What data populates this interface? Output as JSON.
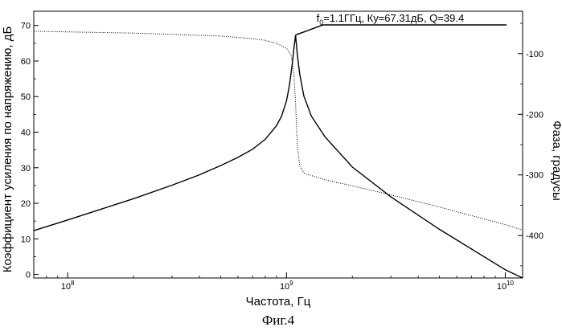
{
  "chart_data": {
    "type": "line",
    "title": "",
    "annotation": {
      "prefix": "f",
      "subscript": "0",
      "rest": "=1.1ГГц, Ку=67.31дБ, Q=39.4",
      "x": 1100000000.0,
      "y": 67.31
    },
    "xlabel": "Частота, Гц",
    "ylabel_left": "Коэффициент усиления по напряжению, дБ",
    "ylabel_right": "Фаза, градусы",
    "xscale": "log",
    "xlim": [
      70000000.0,
      12000000000.0
    ],
    "ylim_left": [
      -1,
      74
    ],
    "ylim_right": [
      -470,
      -30
    ],
    "x_ticks": [
      {
        "base": "10",
        "exp": "8",
        "value": 100000000.0
      },
      {
        "base": "10",
        "exp": "9",
        "value": 1000000000.0
      },
      {
        "base": "10",
        "exp": "10",
        "value": 10000000000.0
      }
    ],
    "y_ticks_left": [
      "0",
      "10",
      "20",
      "30",
      "40",
      "50",
      "60",
      "70"
    ],
    "y_ticks_right": [
      "-100",
      "-200",
      "-300",
      "-400"
    ],
    "series": [
      {
        "style": "solid",
        "axis": "left",
        "x": [
          70000000.0,
          100000000.0,
          200000000.0,
          300000000.0,
          400000000.0,
          500000000.0,
          600000000.0,
          700000000.0,
          800000000.0,
          900000000.0,
          950000000.0,
          1000000000.0,
          1030000000.0,
          1060000000.0,
          1080000000.0,
          1100000000.0,
          1120000000.0,
          1150000000.0,
          1200000000.0,
          1300000000.0,
          1500000000.0,
          2000000000.0,
          3000000000.0,
          5000000000.0,
          10000000000.0,
          12000000000.0
        ],
        "y": [
          12.3,
          15.3,
          21.3,
          25.1,
          28.0,
          30.6,
          32.9,
          35.2,
          38.0,
          41.8,
          44.5,
          48.8,
          52.9,
          58.6,
          63.2,
          67.31,
          62.0,
          56.3,
          50.2,
          44.5,
          38.7,
          30.2,
          21.8,
          12.7,
          1.3,
          -1.0
        ]
      },
      {
        "style": "dotted",
        "axis": "right",
        "x": [
          70000000.0,
          100000000.0,
          200000000.0,
          300000000.0,
          500000000.0,
          700000000.0,
          800000000.0,
          900000000.0,
          1000000000.0,
          1050000000.0,
          1080000000.0,
          1100000000.0,
          1120000000.0,
          1150000000.0,
          1200000000.0,
          1500000000.0,
          2000000000.0,
          3000000000.0,
          5000000000.0,
          10000000000.0,
          12000000000.0
        ],
        "y": [
          -63,
          -64,
          -66,
          -68,
          -71,
          -75,
          -78,
          -83,
          -91,
          -103,
          -130,
          -180,
          -250,
          -285,
          -297,
          -308,
          -318,
          -333,
          -353,
          -382,
          -391
        ]
      }
    ]
  },
  "caption": "Фиг.4"
}
